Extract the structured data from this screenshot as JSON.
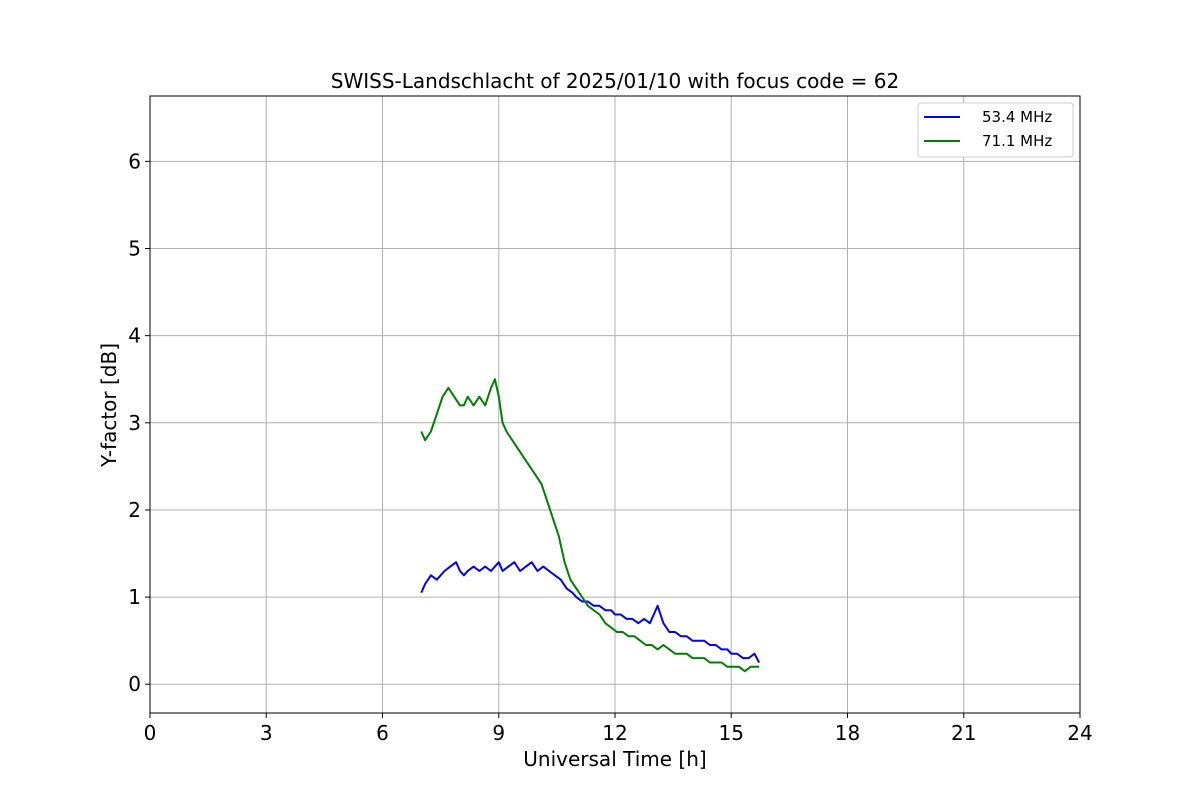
{
  "chart_data": {
    "type": "line",
    "title": "SWISS-Landschlacht of 2025/01/10 with focus code = 62",
    "xlabel": "Universal Time [h]",
    "ylabel": "Y-factor [dB]",
    "xlim": [
      0,
      24
    ],
    "ylim": [
      -0.33,
      6.75
    ],
    "xticks": [
      0,
      3,
      6,
      9,
      12,
      15,
      18,
      21,
      24
    ],
    "xtick_labels": [
      "0",
      "3",
      "6",
      "9",
      "12",
      "15",
      "18",
      "21",
      "24"
    ],
    "yticks": [
      0,
      1,
      2,
      3,
      4,
      5,
      6
    ],
    "ytick_labels": [
      "0",
      "1",
      "2",
      "3",
      "4",
      "5",
      "6"
    ],
    "grid": true,
    "legend_position": "top-right",
    "series": [
      {
        "name": "53.4 MHz",
        "color": "#0000ff",
        "x": [
          7.0,
          7.1,
          7.25,
          7.4,
          7.6,
          7.75,
          7.9,
          8.0,
          8.1,
          8.2,
          8.35,
          8.5,
          8.65,
          8.8,
          9.0,
          9.1,
          9.25,
          9.4,
          9.55,
          9.7,
          9.85,
          10.0,
          10.15,
          10.3,
          10.45,
          10.6,
          10.75,
          10.9,
          11.0,
          11.15,
          11.3,
          11.45,
          11.6,
          11.75,
          11.9,
          12.0,
          12.15,
          12.3,
          12.45,
          12.6,
          12.75,
          12.9,
          13.0,
          13.1,
          13.25,
          13.4,
          13.55,
          13.7,
          13.85,
          14.0,
          14.15,
          14.3,
          14.45,
          14.6,
          14.75,
          14.9,
          15.0,
          15.15,
          15.3,
          15.45,
          15.6,
          15.72
        ],
        "y": [
          1.05,
          1.15,
          1.25,
          1.2,
          1.3,
          1.35,
          1.4,
          1.3,
          1.25,
          1.3,
          1.35,
          1.3,
          1.35,
          1.3,
          1.4,
          1.3,
          1.35,
          1.4,
          1.3,
          1.35,
          1.4,
          1.3,
          1.35,
          1.3,
          1.25,
          1.2,
          1.1,
          1.05,
          1.0,
          0.95,
          0.95,
          0.9,
          0.9,
          0.85,
          0.85,
          0.8,
          0.8,
          0.75,
          0.75,
          0.7,
          0.75,
          0.7,
          0.8,
          0.9,
          0.7,
          0.6,
          0.6,
          0.55,
          0.55,
          0.5,
          0.5,
          0.5,
          0.45,
          0.45,
          0.4,
          0.4,
          0.35,
          0.35,
          0.3,
          0.3,
          0.35,
          0.25
        ]
      },
      {
        "name": "71.1 MHz",
        "color": "#008000",
        "x": [
          7.0,
          7.1,
          7.25,
          7.4,
          7.55,
          7.7,
          7.85,
          8.0,
          8.1,
          8.2,
          8.35,
          8.5,
          8.65,
          8.8,
          8.9,
          9.0,
          9.1,
          9.2,
          9.35,
          9.5,
          9.65,
          9.8,
          9.95,
          10.1,
          10.25,
          10.4,
          10.55,
          10.7,
          10.85,
          11.0,
          11.15,
          11.3,
          11.45,
          11.6,
          11.75,
          11.9,
          12.05,
          12.2,
          12.35,
          12.5,
          12.65,
          12.8,
          12.95,
          13.1,
          13.25,
          13.4,
          13.55,
          13.7,
          13.85,
          14.0,
          14.15,
          14.3,
          14.45,
          14.6,
          14.75,
          14.9,
          15.05,
          15.2,
          15.35,
          15.5,
          15.72
        ],
        "y": [
          2.9,
          2.8,
          2.9,
          3.1,
          3.3,
          3.4,
          3.3,
          3.2,
          3.2,
          3.3,
          3.2,
          3.3,
          3.2,
          3.4,
          3.5,
          3.3,
          3.0,
          2.9,
          2.8,
          2.7,
          2.6,
          2.5,
          2.4,
          2.3,
          2.1,
          1.9,
          1.7,
          1.4,
          1.2,
          1.1,
          1.0,
          0.9,
          0.85,
          0.8,
          0.7,
          0.65,
          0.6,
          0.6,
          0.55,
          0.55,
          0.5,
          0.45,
          0.45,
          0.4,
          0.45,
          0.4,
          0.35,
          0.35,
          0.35,
          0.3,
          0.3,
          0.3,
          0.25,
          0.25,
          0.25,
          0.2,
          0.2,
          0.2,
          0.15,
          0.2,
          0.2
        ]
      }
    ]
  }
}
